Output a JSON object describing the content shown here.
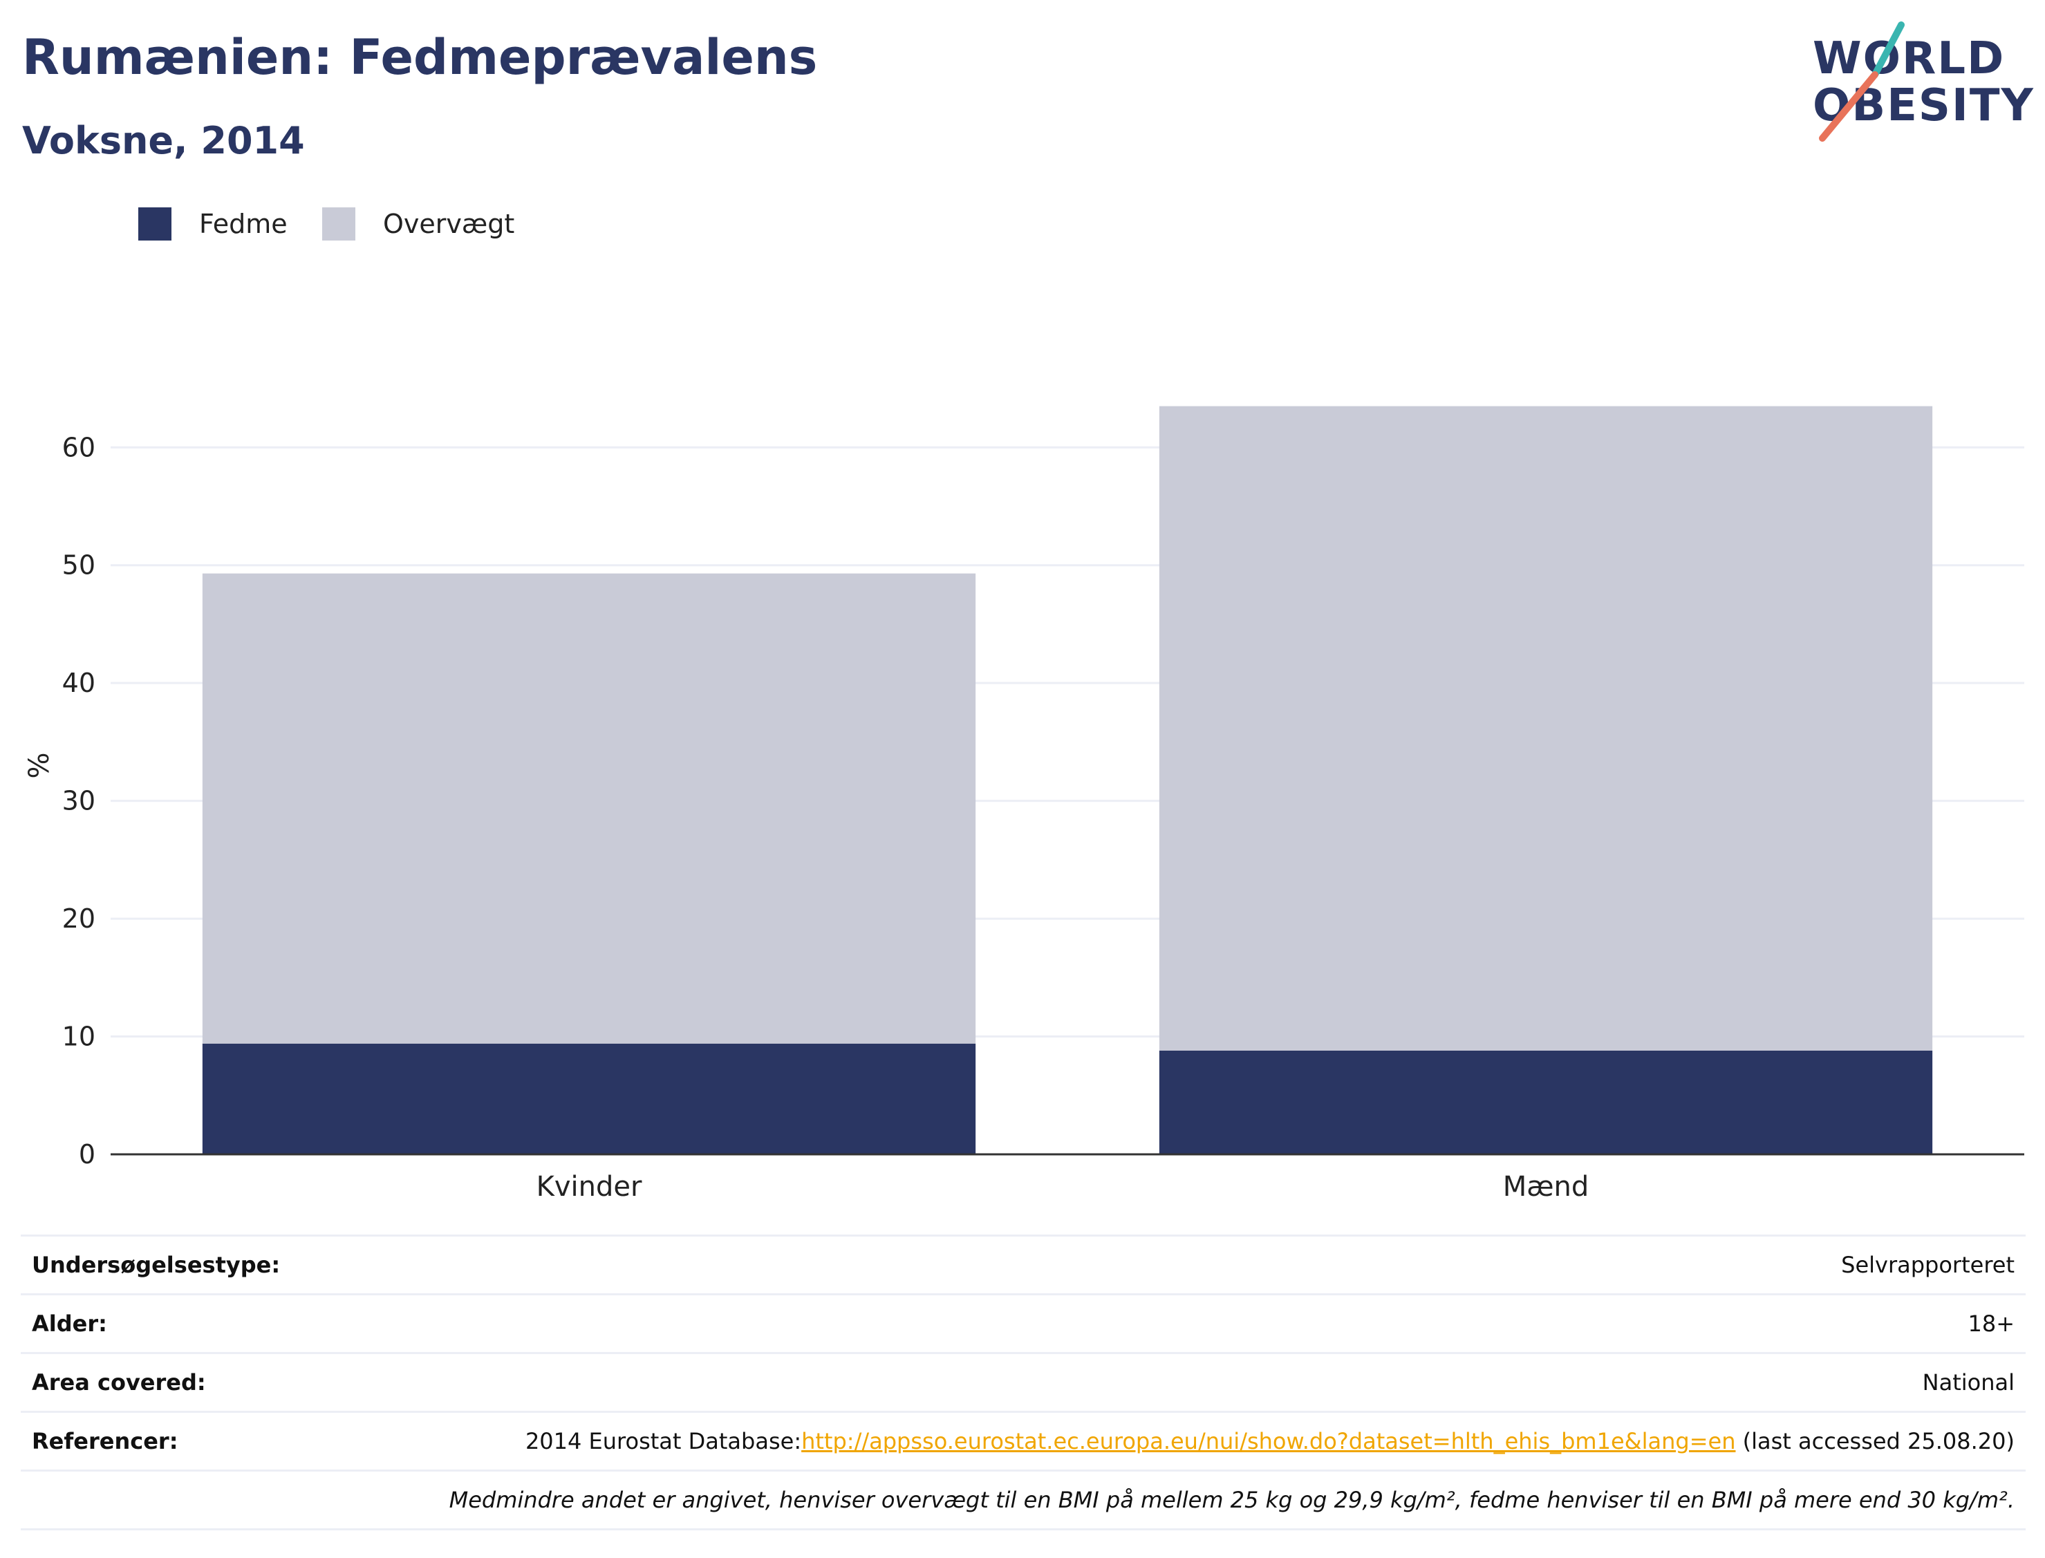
{
  "header": {
    "title": "Rumænien: Fedmeprævalens",
    "subtitle": "Voksne, 2014"
  },
  "logo": {
    "line1": "WORLD",
    "line2": "OBESITY",
    "accent_colors": [
      "#3ab5b0",
      "#e8735a"
    ]
  },
  "colors": {
    "fedme": "#2a3663",
    "overvaegt": "#c9cbd7",
    "grid": "#eceef5",
    "axis": "#333333"
  },
  "chart_data": {
    "type": "bar",
    "stacked": true,
    "categories": [
      "Kvinder",
      "Mænd"
    ],
    "series": [
      {
        "name": "Fedme",
        "values": [
          9.4,
          8.8
        ]
      },
      {
        "name": "Overvægt",
        "values": [
          39.9,
          54.7
        ]
      }
    ],
    "ylabel": "%",
    "xlabel": "",
    "ylim": [
      0,
      66
    ],
    "yticks": [
      0,
      10,
      20,
      30,
      40,
      50,
      60
    ],
    "grid": true,
    "legend_position": "top-left"
  },
  "info": {
    "rows": [
      {
        "label": "Undersøgelsestype:",
        "value": "Selvrapporteret"
      },
      {
        "label": "Alder:",
        "value": "18+"
      },
      {
        "label": "Area covered:",
        "value": "National"
      }
    ],
    "reference": {
      "label": "Referencer:",
      "prefix": "2014 Eurostat Database:",
      "link": "http://appsso.eurostat.ec.europa.eu/nui/show.do?dataset=hlth_ehis_bm1e&lang=en",
      "suffix": " (last accessed 25.08.20)"
    },
    "note": "Medmindre andet er angivet, henviser overvægt til en BMI på mellem 25 kg og 29,9 kg/m², fedme henviser til en BMI på mere end 30 kg/m²."
  }
}
